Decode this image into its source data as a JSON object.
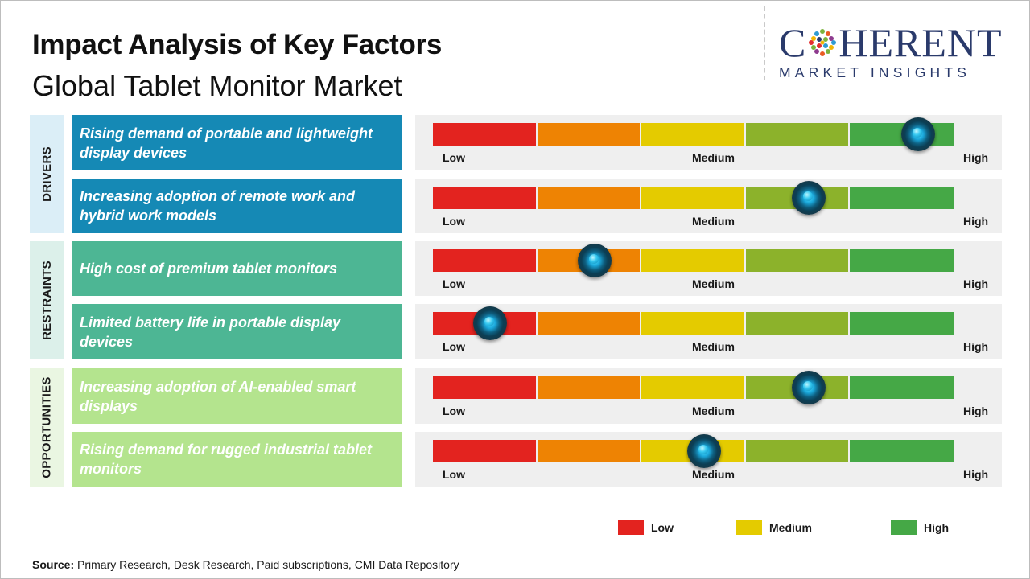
{
  "title": "Impact Analysis of Key Factors",
  "subtitle": "Global Tablet Monitor Market",
  "logo": {
    "line1": [
      "C",
      "HERENT"
    ],
    "line2": "MARKET INSIGHTS",
    "color": "#2a3a6b"
  },
  "categories": [
    {
      "label": "DRIVERS",
      "color": "#dbeef7"
    },
    {
      "label": "RESTRAINTS",
      "color": "#dcf0ea"
    },
    {
      "label": "OPPORTUNITIES",
      "color": "#eaf6e2"
    }
  ],
  "colors": {
    "segments": [
      "#e3231f",
      "#ee8303",
      "#e4cb00",
      "#8cb22b",
      "#45a846"
    ],
    "drivers_box": "#1589b5",
    "restraints_box": "#4db694",
    "opportunities_box": "#b4e48e",
    "gauge_bg": "#efefef"
  },
  "scale_labels": {
    "low": "Low",
    "medium": "Medium",
    "high": "High"
  },
  "legend": [
    {
      "label": "Low",
      "color": "#e3231f"
    },
    {
      "label": "Medium",
      "color": "#e4cb00"
    },
    {
      "label": "High",
      "color": "#45a846"
    }
  ],
  "source": {
    "prefix": "Source:",
    "text": " Primary Research, Desk Research, Paid subscriptions, CMI Data Repository"
  },
  "chart_data": {
    "type": "gauge",
    "scale": [
      "Low",
      "Medium",
      "High"
    ],
    "range": [
      0,
      1
    ],
    "factors": [
      {
        "category": "DRIVERS",
        "label": "Rising demand of portable and lightweight display devices",
        "impact": 0.93
      },
      {
        "category": "DRIVERS",
        "label": "Increasing adoption of remote work and hybrid work models",
        "impact": 0.72
      },
      {
        "category": "RESTRAINTS",
        "label": "High cost of premium tablet monitors",
        "impact": 0.31
      },
      {
        "category": "RESTRAINTS",
        "label": "Limited battery life in portable display devices",
        "impact": 0.11
      },
      {
        "category": "OPPORTUNITIES",
        "label": "Increasing adoption of AI-enabled smart displays",
        "impact": 0.72
      },
      {
        "category": "OPPORTUNITIES",
        "label": "Rising demand for rugged industrial tablet monitors",
        "impact": 0.52
      }
    ]
  }
}
